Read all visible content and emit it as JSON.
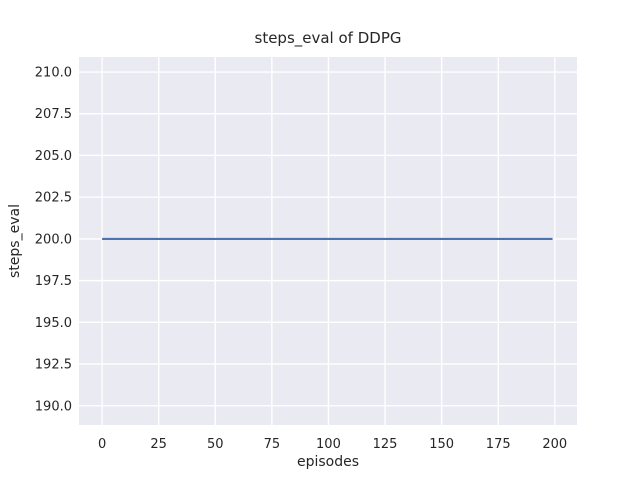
{
  "chart_data": {
    "type": "line",
    "title": "steps_eval of DDPG",
    "xlabel": "episodes",
    "ylabel": "steps_eval",
    "xlim": [
      -10.2,
      209.8
    ],
    "ylim": [
      188.85,
      210.9
    ],
    "x_ticks": [
      0,
      25,
      50,
      75,
      100,
      125,
      150,
      175,
      200
    ],
    "x_tick_labels": [
      "0",
      "25",
      "50",
      "75",
      "100",
      "125",
      "150",
      "175",
      "200"
    ],
    "y_ticks": [
      190.0,
      192.5,
      195.0,
      197.5,
      200.0,
      202.5,
      205.0,
      207.5,
      210.0
    ],
    "y_tick_labels": [
      "190.0",
      "192.5",
      "195.0",
      "197.5",
      "200.0",
      "202.5",
      "205.0",
      "207.5",
      "210.0"
    ],
    "grid": true,
    "legend_position": "none",
    "series": [
      {
        "name": "steps_eval",
        "x": [
          0,
          199
        ],
        "y": [
          200.0,
          200.0
        ],
        "constant_value": 200.0
      }
    ],
    "colors": {
      "line": "#4c72b0",
      "plot_background": "#eaeaf2",
      "grid": "#ffffff",
      "figure_background": "#ffffff",
      "text": "#262626"
    }
  }
}
